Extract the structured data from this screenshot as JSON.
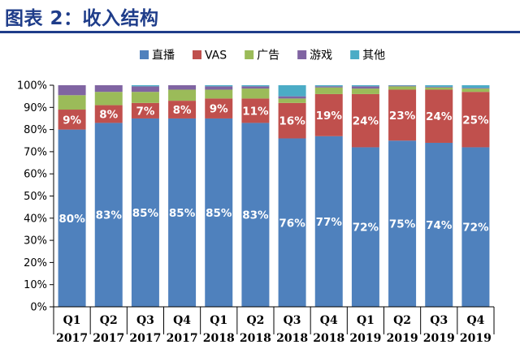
{
  "header": {
    "title": "图表 2：收入结构"
  },
  "chart_data": {
    "type": "bar",
    "stacked": true,
    "categories": [
      "Q1 2017",
      "Q2 2017",
      "Q3 2017",
      "Q4 2017",
      "Q1 2018",
      "Q2 2018",
      "Q3 2018",
      "Q4 2018",
      "Q1 2019",
      "Q2 2019",
      "Q3 2019",
      "Q4 2019"
    ],
    "category_lines": [
      [
        "Q1",
        "2017"
      ],
      [
        "Q2",
        "2017"
      ],
      [
        "Q3",
        "2017"
      ],
      [
        "Q4",
        "2017"
      ],
      [
        "Q1",
        "2018"
      ],
      [
        "Q2",
        "2018"
      ],
      [
        "Q3",
        "2018"
      ],
      [
        "Q4",
        "2018"
      ],
      [
        "Q1",
        "2019"
      ],
      [
        "Q2",
        "2019"
      ],
      [
        "Q3",
        "2019"
      ],
      [
        "Q4",
        "2019"
      ]
    ],
    "series": [
      {
        "name": "直播",
        "color": "#4f81bd",
        "values": [
          80,
          83,
          85,
          85,
          85,
          83,
          76,
          77,
          72,
          75,
          74,
          72
        ],
        "labels": [
          "80%",
          "83%",
          "85%",
          "85%",
          "85%",
          "83%",
          "76%",
          "77%",
          "72%",
          "75%",
          "74%",
          "72%"
        ]
      },
      {
        "name": "VAS",
        "color": "#c0504d",
        "values": [
          9,
          8,
          7,
          8,
          9,
          11,
          16,
          19,
          24,
          23,
          24,
          25
        ],
        "labels": [
          "9%",
          "8%",
          "7%",
          "8%",
          "9%",
          "11%",
          "16%",
          "19%",
          "24%",
          "23%",
          "24%",
          "25%"
        ]
      },
      {
        "name": "广告",
        "color": "#9bbb59",
        "values": [
          6.5,
          6,
          5,
          5,
          4,
          4.5,
          2,
          3,
          2.5,
          1.5,
          1,
          1.5
        ],
        "labels": null
      },
      {
        "name": "游戏",
        "color": "#8064a2",
        "values": [
          4.5,
          3,
          2.5,
          2,
          1.5,
          1,
          1,
          0.5,
          1,
          0.3,
          0.3,
          0.3
        ],
        "labels": null
      },
      {
        "name": "其他",
        "color": "#4bacc6",
        "values": [
          0,
          0,
          0.5,
          0,
          0.5,
          0.5,
          5,
          0.5,
          0.5,
          0.2,
          0.7,
          1.2
        ],
        "labels": null
      }
    ],
    "ylim": [
      0,
      100
    ],
    "yticks": [
      0,
      10,
      20,
      30,
      40,
      50,
      60,
      70,
      80,
      90,
      100
    ],
    "ytick_labels": [
      "0%",
      "10%",
      "20%",
      "30%",
      "40%",
      "50%",
      "60%",
      "70%",
      "80%",
      "90%",
      "100%"
    ],
    "legend_position": "top",
    "grid": false,
    "xlabel": "",
    "ylabel": ""
  }
}
